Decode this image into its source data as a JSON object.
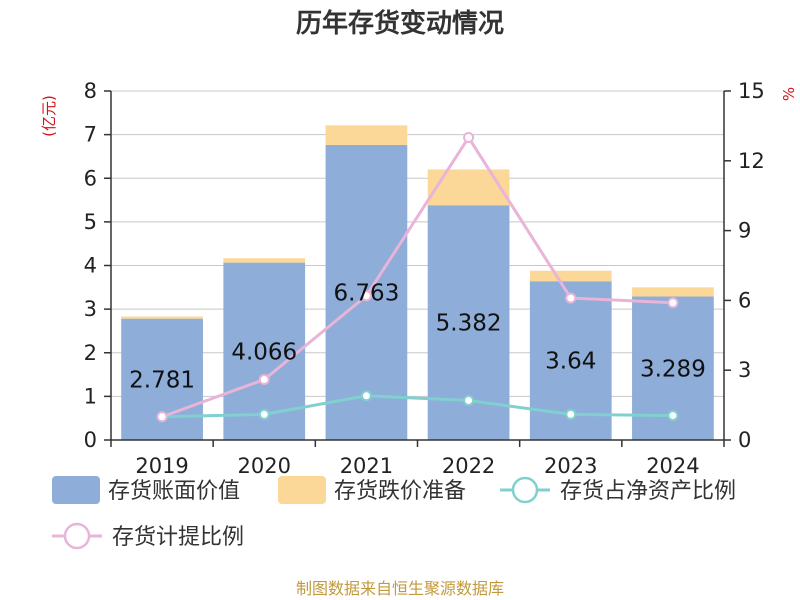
{
  "chart_data": {
    "type": "bar",
    "title": "历年存货变动情况",
    "source": "制图数据来自恒生聚源数据库",
    "left_axis": {
      "unit": "(亿元)",
      "ylim": [
        0,
        8
      ],
      "ticks": [
        "0",
        "1",
        "2",
        "3",
        "4",
        "5",
        "6",
        "7",
        "8"
      ]
    },
    "right_axis": {
      "unit": "%",
      "ylim": [
        0,
        15
      ],
      "ticks": [
        "0",
        "3",
        "6",
        "9",
        "12",
        "15"
      ]
    },
    "categories": [
      "2019",
      "2020",
      "2021",
      "2022",
      "2023",
      "2024"
    ],
    "series": [
      {
        "name": "存货账面价值",
        "type": "bar",
        "stack": "inventory",
        "axis": "left",
        "color": "#8eadd9",
        "values": [
          2.781,
          4.066,
          6.763,
          5.382,
          3.64,
          3.289
        ],
        "labels": [
          "2.781",
          "4.066",
          "6.763",
          "5.382",
          "3.64",
          "3.289"
        ]
      },
      {
        "name": "存货跌价准备",
        "type": "bar",
        "stack": "inventory",
        "axis": "left",
        "color": "#fcd898",
        "values": [
          0.05,
          0.1,
          0.45,
          0.82,
          0.24,
          0.21
        ]
      },
      {
        "name": "存货占净资产比例",
        "type": "line",
        "axis": "right",
        "color": "#80d0d0",
        "values": [
          1.0,
          1.1,
          1.9,
          1.7,
          1.1,
          1.05
        ]
      },
      {
        "name": "存货计提比例",
        "type": "line",
        "axis": "right",
        "color": "#e8b4d8",
        "values": [
          1.0,
          2.6,
          6.2,
          13.0,
          6.1,
          5.9
        ]
      }
    ],
    "grid": true,
    "legend_position": "bottom"
  }
}
